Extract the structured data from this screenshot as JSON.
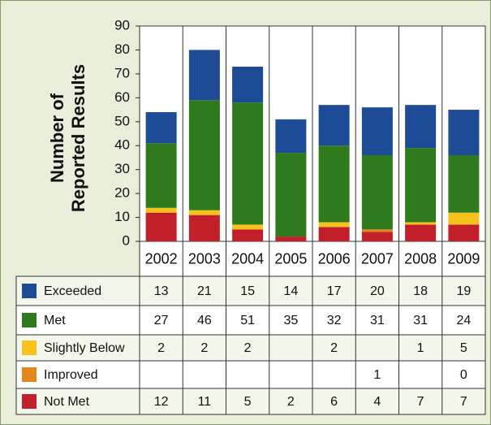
{
  "chart_data": {
    "type": "stacked_bar",
    "y_label": [
      "Number of",
      "Reported Results"
    ],
    "categories": [
      "2002",
      "2003",
      "2004",
      "2005",
      "2006",
      "2007",
      "2008",
      "2009"
    ],
    "series": [
      {
        "name": "Not Met",
        "color": "#c1202a",
        "values": [
          12,
          11,
          5,
          2,
          6,
          4,
          7,
          7
        ]
      },
      {
        "name": "Improved",
        "color": "#e3891c",
        "values": [
          null,
          null,
          null,
          null,
          null,
          1,
          null,
          0
        ]
      },
      {
        "name": "Slightly Below",
        "color": "#f7c21b",
        "values": [
          2,
          2,
          2,
          null,
          2,
          null,
          1,
          5
        ]
      },
      {
        "name": "Met",
        "color": "#2f7a1c",
        "values": [
          27,
          46,
          51,
          35,
          32,
          31,
          31,
          24
        ]
      },
      {
        "name": "Exceeded",
        "color": "#1d4b95",
        "values": [
          13,
          21,
          15,
          14,
          17,
          20,
          18,
          19
        ]
      }
    ],
    "ylim": [
      0,
      90
    ],
    "yticks": [
      0,
      10,
      20,
      30,
      40,
      50,
      60,
      70,
      80,
      90
    ]
  }
}
